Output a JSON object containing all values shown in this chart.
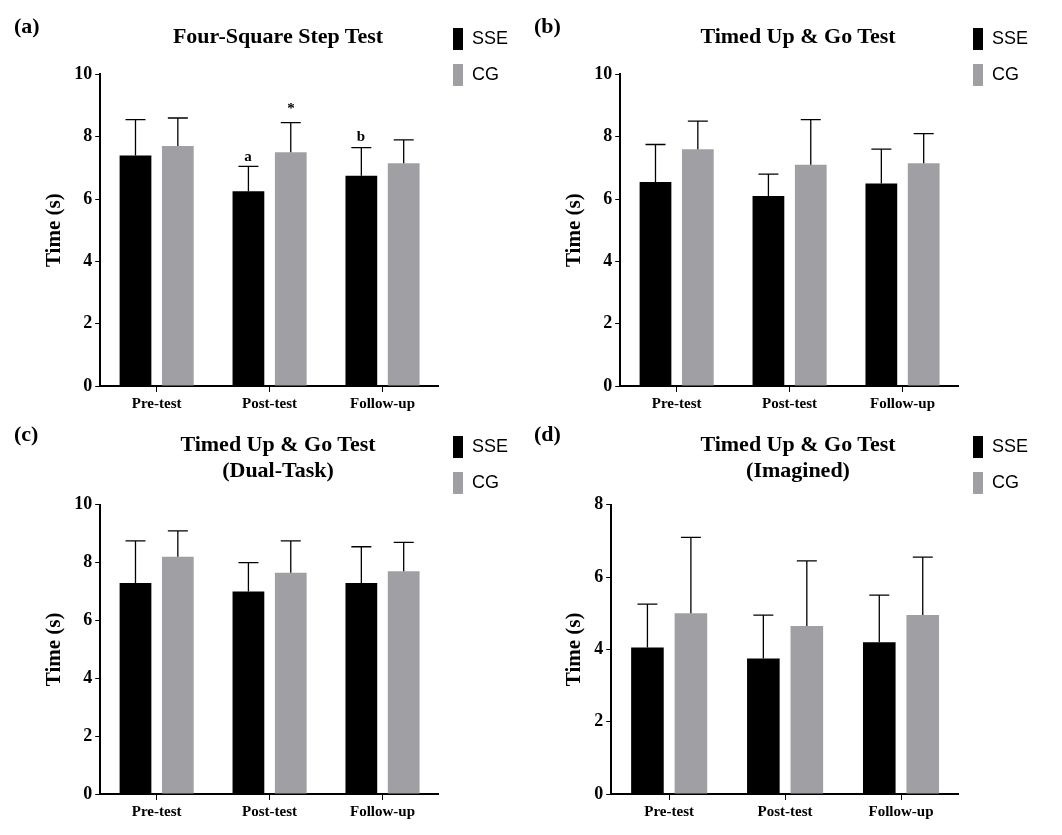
{
  "chart_data": [
    {
      "type": "bar",
      "title": "Four-Square Step Test",
      "ylabel": "Time (s)",
      "categories": [
        "Pre-test",
        "Post-test",
        "Follow-up"
      ],
      "ylim": [
        0,
        10
      ],
      "yticks": [
        0,
        2,
        4,
        6,
        8,
        10
      ],
      "grid": false,
      "legend": "top right",
      "series": [
        {
          "name": "SSE",
          "color": "#000000",
          "values": [
            7.4,
            6.25,
            6.75
          ],
          "errors": [
            [
              7.4,
              8.55
            ],
            [
              6.25,
              7.05
            ],
            [
              6.75,
              7.65
            ]
          ]
        },
        {
          "name": "CG",
          "color": "#a0a0a4",
          "values": [
            7.7,
            7.5,
            7.15
          ],
          "errors": [
            [
              7.7,
              8.6
            ],
            [
              7.5,
              8.45
            ],
            [
              7.15,
              7.9
            ]
          ]
        }
      ],
      "annotations": [
        "(a)",
        "a",
        "*",
        "b"
      ]
    },
    {
      "type": "bar",
      "title": "Timed Up & Go Test",
      "ylabel": "Time (s)",
      "categories": [
        "Pre-test",
        "Post-test",
        "Follow-up"
      ],
      "ylim": [
        0,
        10
      ],
      "yticks": [
        0,
        2,
        4,
        6,
        8,
        10
      ],
      "grid": false,
      "legend": "top right",
      "series": [
        {
          "name": "SSE",
          "color": "#000000",
          "values": [
            6.55,
            6.1,
            6.5
          ],
          "errors": [
            [
              6.55,
              7.75
            ],
            [
              6.1,
              6.8
            ],
            [
              6.5,
              7.6
            ]
          ]
        },
        {
          "name": "CG",
          "color": "#a0a0a4",
          "values": [
            7.6,
            7.1,
            7.15
          ],
          "errors": [
            [
              7.6,
              8.5
            ],
            [
              7.1,
              8.55
            ],
            [
              7.15,
              8.1
            ]
          ]
        }
      ],
      "annotations": [
        "(b)"
      ]
    },
    {
      "type": "bar",
      "title": "Timed Up & Go Test",
      "subtitle": "(Dual-Task)",
      "ylabel": "Time (s)",
      "categories": [
        "Pre-test",
        "Post-test",
        "Follow-up"
      ],
      "ylim": [
        0,
        10
      ],
      "yticks": [
        0,
        2,
        4,
        6,
        8,
        10
      ],
      "grid": false,
      "legend": "top right",
      "series": [
        {
          "name": "SSE",
          "color": "#000000",
          "values": [
            7.3,
            7.0,
            7.3
          ],
          "errors": [
            [
              7.3,
              8.75
            ],
            [
              7.0,
              8.0
            ],
            [
              7.3,
              8.55
            ]
          ]
        },
        {
          "name": "CG",
          "color": "#a0a0a4",
          "values": [
            8.2,
            7.65,
            7.7
          ],
          "errors": [
            [
              8.2,
              9.1
            ],
            [
              7.65,
              8.75
            ],
            [
              7.7,
              8.7
            ]
          ]
        }
      ],
      "annotations": [
        "(c)"
      ]
    },
    {
      "type": "bar",
      "title": "Timed Up & Go Test",
      "subtitle": "(Imagined)",
      "ylabel": "Time (s)",
      "categories": [
        "Pre-test",
        "Post-test",
        "Follow-up"
      ],
      "ylim": [
        0,
        8
      ],
      "yticks": [
        0,
        2,
        4,
        6,
        8
      ],
      "grid": false,
      "legend": "top right",
      "series": [
        {
          "name": "SSE",
          "color": "#000000",
          "values": [
            4.05,
            3.75,
            4.2
          ],
          "errors": [
            [
              4.05,
              5.25
            ],
            [
              3.75,
              4.95
            ],
            [
              4.2,
              5.5
            ]
          ]
        },
        {
          "name": "CG",
          "color": "#a0a0a4",
          "values": [
            5.0,
            4.65,
            4.95
          ],
          "errors": [
            [
              5.0,
              7.1
            ],
            [
              4.65,
              6.45
            ],
            [
              4.95,
              6.55
            ]
          ]
        }
      ],
      "annotations": [
        "(d)"
      ]
    }
  ]
}
